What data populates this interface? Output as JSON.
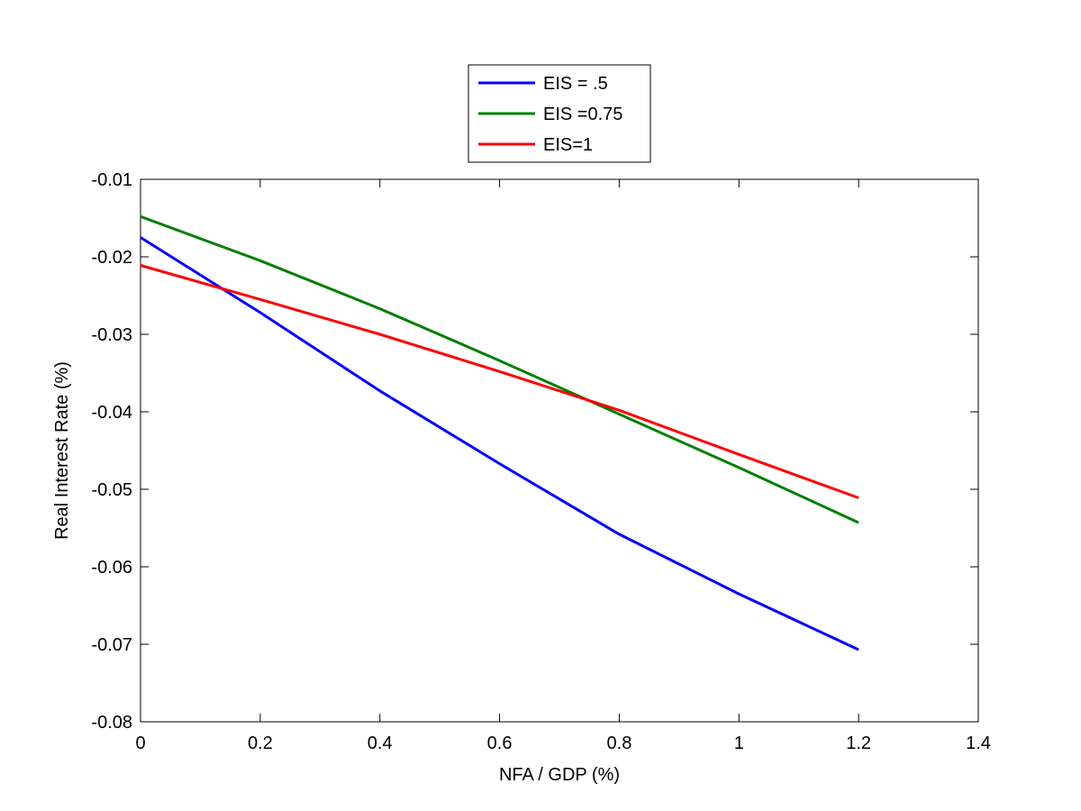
{
  "chart_data": {
    "type": "line",
    "title": "",
    "xlabel": "NFA / GDP (%)",
    "ylabel": "Real Interest Rate (%)",
    "xlim": [
      0,
      1.4
    ],
    "ylim": [
      -0.08,
      -0.01
    ],
    "xticks": [
      0,
      0.2,
      0.4,
      0.6,
      0.8,
      1,
      1.2,
      1.4
    ],
    "xtick_labels": [
      "0",
      "0.2",
      "0.4",
      "0.6",
      "0.8",
      "1",
      "1.2",
      "1.4"
    ],
    "yticks": [
      -0.08,
      -0.07,
      -0.06,
      -0.05,
      -0.04,
      -0.03,
      -0.02,
      -0.01
    ],
    "ytick_labels": [
      "-0.08",
      "-0.07",
      "-0.06",
      "-0.05",
      "-0.04",
      "-0.03",
      "-0.02",
      "-0.01"
    ],
    "grid": false,
    "legend_position": "top-center-outside",
    "x": [
      0,
      0.2,
      0.4,
      0.6,
      0.8,
      1.0,
      1.2
    ],
    "series": [
      {
        "name": "EIS = .5",
        "color": "#0000ff",
        "values": [
          -0.0175,
          -0.0272,
          -0.0373,
          -0.0467,
          -0.0558,
          -0.0635,
          -0.0707
        ]
      },
      {
        "name": "EIS =0.75",
        "color": "#007f00",
        "values": [
          -0.0148,
          -0.0205,
          -0.0267,
          -0.0334,
          -0.0403,
          -0.0472,
          -0.0543
        ]
      },
      {
        "name": "EIS=1",
        "color": "#ff0000",
        "values": [
          -0.0211,
          -0.0255,
          -0.03,
          -0.0348,
          -0.0398,
          -0.0455,
          -0.0511
        ]
      }
    ]
  }
}
